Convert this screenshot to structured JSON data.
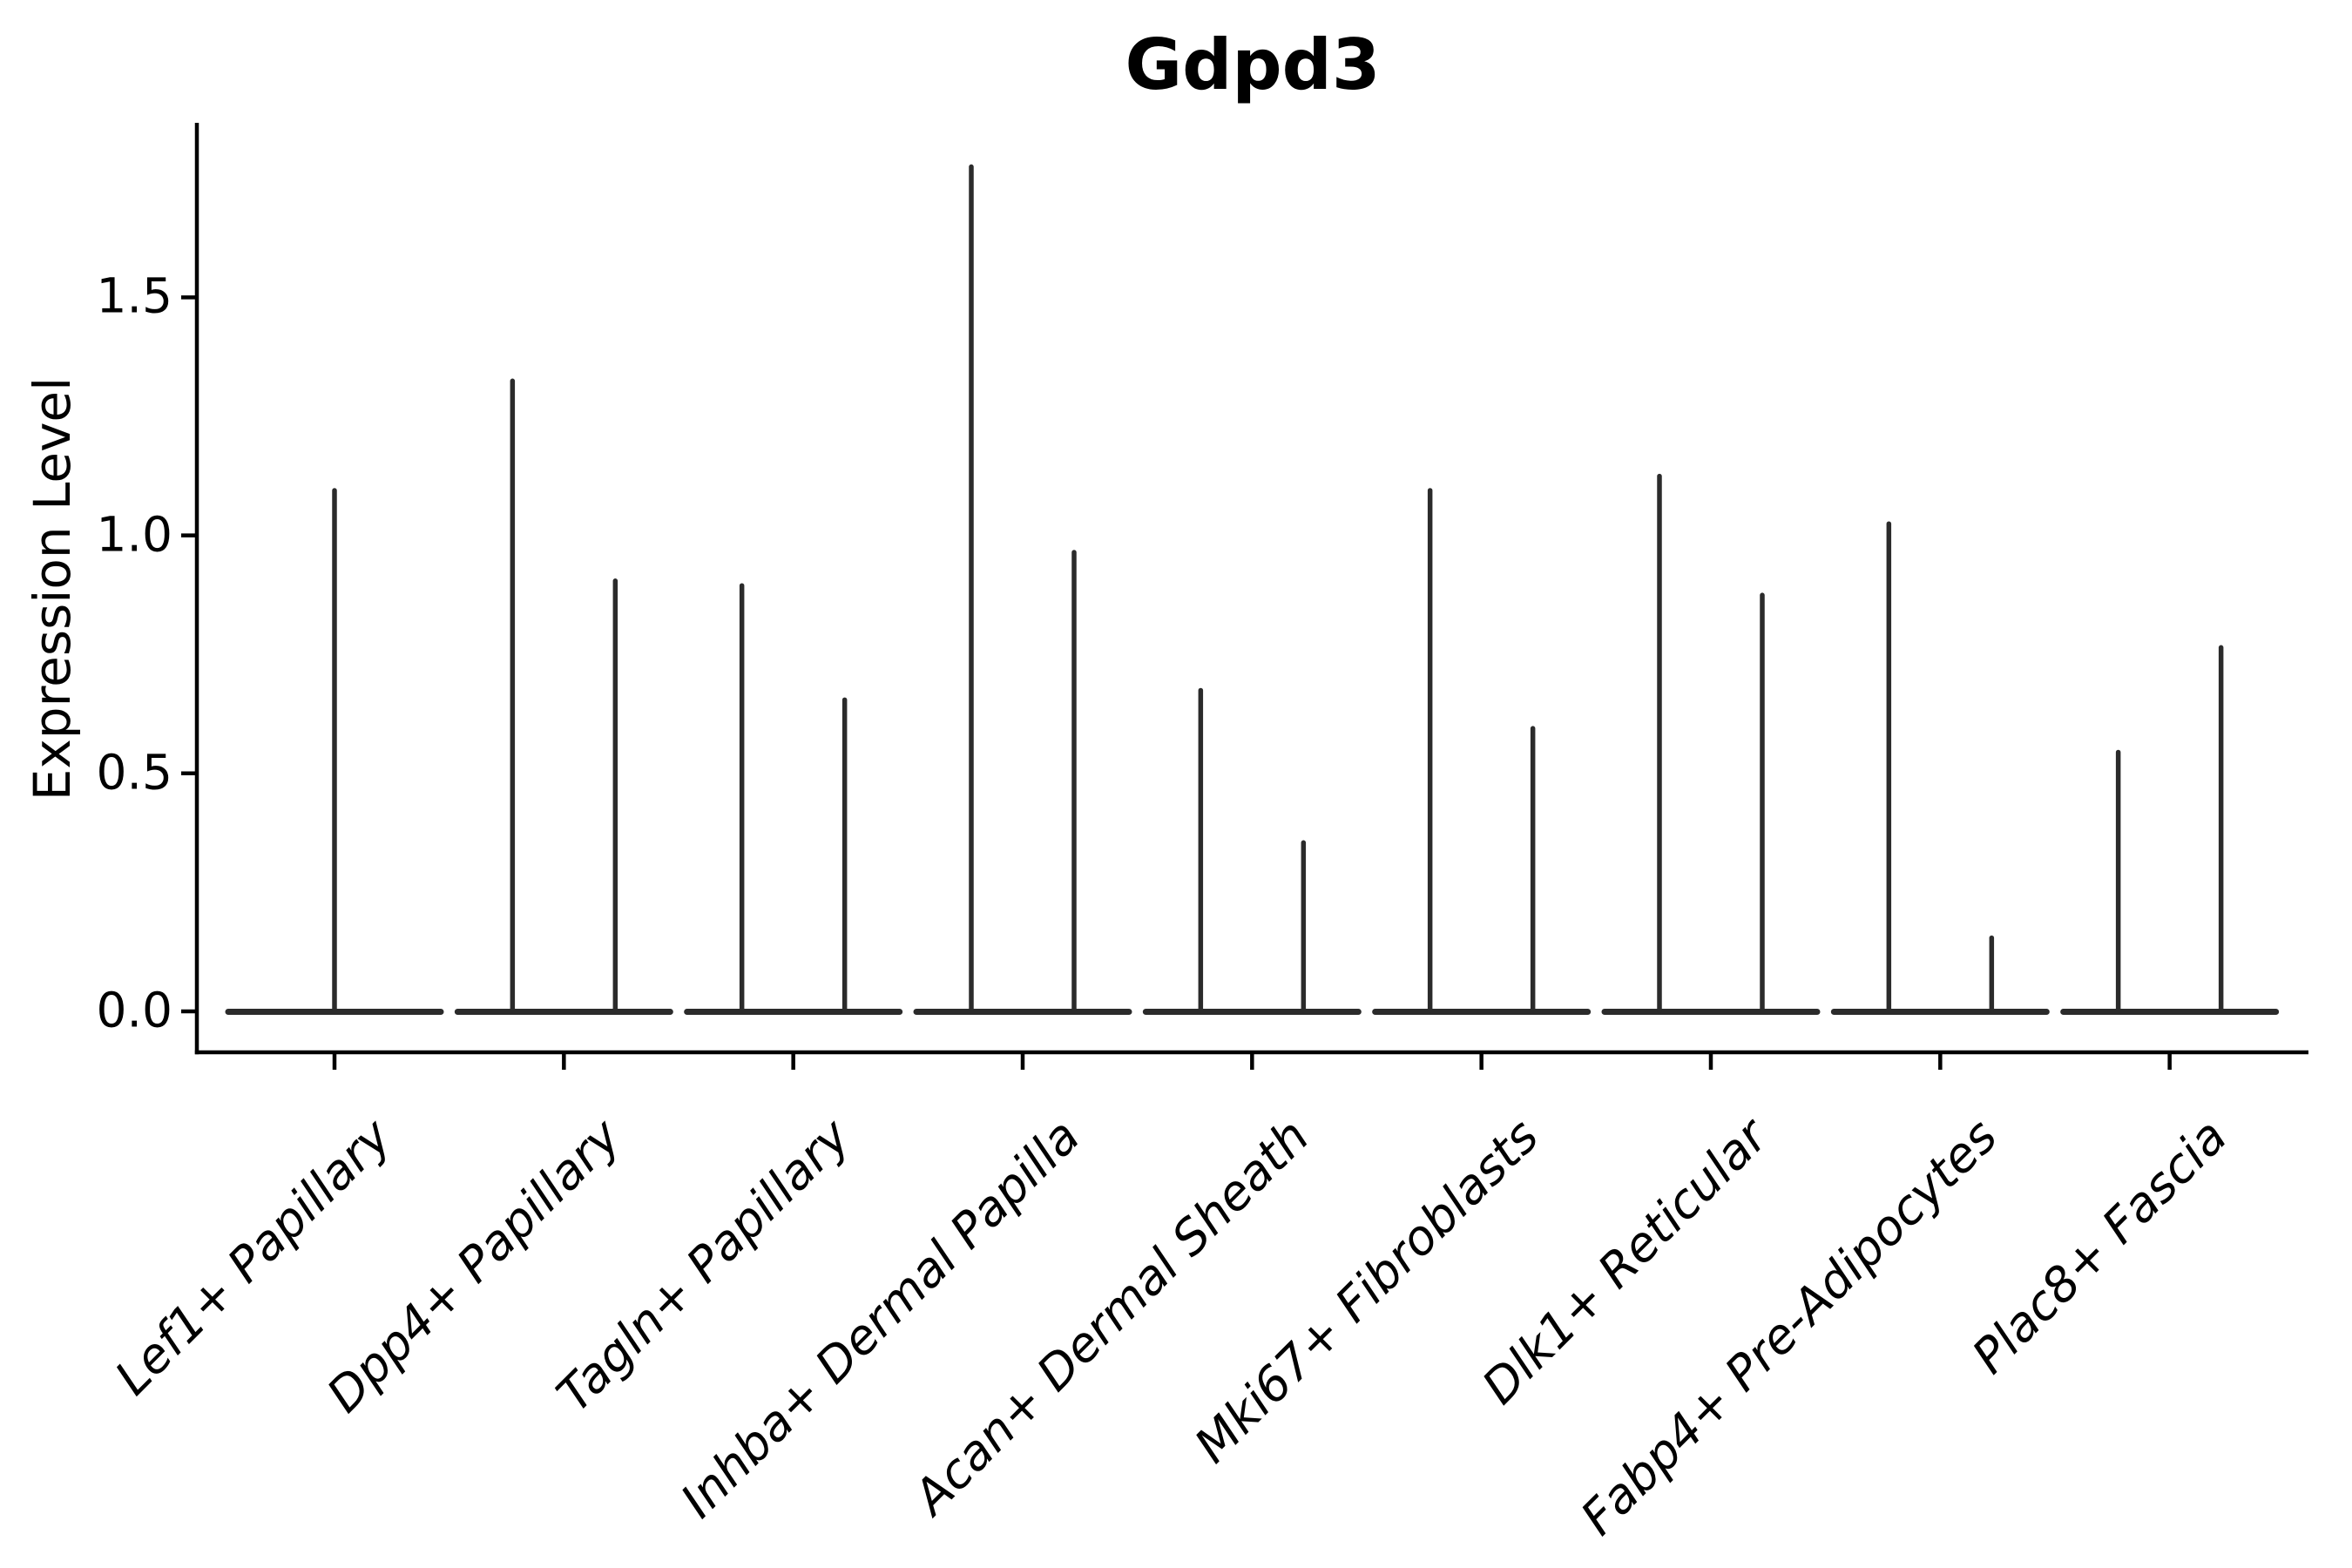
{
  "chart_data": {
    "type": "violin",
    "title": "Gdpd3",
    "ylabel": "Expression Level",
    "xlabel": "",
    "ytick_labels": [
      "0.0",
      "0.5",
      "1.0",
      "1.5"
    ],
    "ytick_values": [
      0.0,
      0.5,
      1.0,
      1.5
    ],
    "ylim": [
      -0.09,
      1.87
    ],
    "grid": false,
    "legend": "none",
    "categories": [
      "Lef1+ Papillary",
      "Dpp4+ Papillary",
      "Tagln+ Papillary",
      "Inhba+ Dermal Papilla",
      "Acan+ Dermal Sheath",
      "Mki67+ Fibroblasts",
      "Dlk1+ Reticular",
      "Fabp4+ Pre-Adipocytes",
      "Plac8+ Fascia"
    ],
    "series": [
      {
        "category": "Lef1+ Papillary",
        "spike_maxima": [
          1.1
        ]
      },
      {
        "category": "Dpp4+ Papillary",
        "spike_maxima": [
          1.33,
          0.91
        ]
      },
      {
        "category": "Tagln+ Papillary",
        "spike_maxima": [
          0.9,
          0.66
        ]
      },
      {
        "category": "Inhba+ Dermal Papilla",
        "spike_maxima": [
          1.78,
          0.97
        ]
      },
      {
        "category": "Acan+ Dermal Sheath",
        "spike_maxima": [
          0.68,
          0.36
        ]
      },
      {
        "category": "Mki67+ Fibroblasts",
        "spike_maxima": [
          1.1,
          0.6
        ]
      },
      {
        "category": "Dlk1+ Reticular",
        "spike_maxima": [
          1.13,
          0.88
        ]
      },
      {
        "category": "Fabp4+ Pre-Adipocytes",
        "spike_maxima": [
          1.03,
          0.16
        ]
      },
      {
        "category": "Plac8+ Fascia",
        "spike_maxima": [
          0.55,
          0.77
        ]
      }
    ],
    "baseline_value": 0.0,
    "colors": {
      "violin_stroke": "#2b2b2b",
      "axis": "#000000",
      "text": "#000000",
      "background": "#ffffff"
    }
  }
}
